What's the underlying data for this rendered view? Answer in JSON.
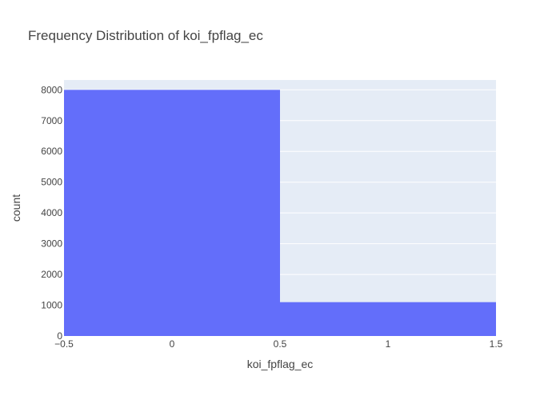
{
  "chart_data": {
    "type": "bar",
    "title": "Frequency Distribution of koi_fpflag_ec",
    "xlabel": "koi_fpflag_ec",
    "ylabel": "count",
    "xlim": [
      -0.5,
      1.5
    ],
    "ylim": [
      0,
      8000
    ],
    "grid": true,
    "bins": [
      {
        "x0": -0.5,
        "x1": 0.5,
        "count": 8000
      },
      {
        "x0": 0.5,
        "x1": 1.5,
        "count": 1100
      }
    ],
    "xticks": [
      {
        "value": -0.5,
        "label": "−0.5"
      },
      {
        "value": 0,
        "label": "0"
      },
      {
        "value": 0.5,
        "label": "0.5"
      },
      {
        "value": 1,
        "label": "1"
      },
      {
        "value": 1.5,
        "label": "1.5"
      }
    ],
    "yticks": [
      {
        "value": 0,
        "label": "0"
      },
      {
        "value": 1000,
        "label": "1000"
      },
      {
        "value": 2000,
        "label": "2000"
      },
      {
        "value": 3000,
        "label": "3000"
      },
      {
        "value": 4000,
        "label": "4000"
      },
      {
        "value": 5000,
        "label": "5000"
      },
      {
        "value": 6000,
        "label": "6000"
      },
      {
        "value": 7000,
        "label": "7000"
      },
      {
        "value": 8000,
        "label": "8000"
      }
    ],
    "colors": {
      "bar": "#636efa",
      "plot_bg": "#e5ecf6",
      "grid": "#ffffff"
    }
  }
}
